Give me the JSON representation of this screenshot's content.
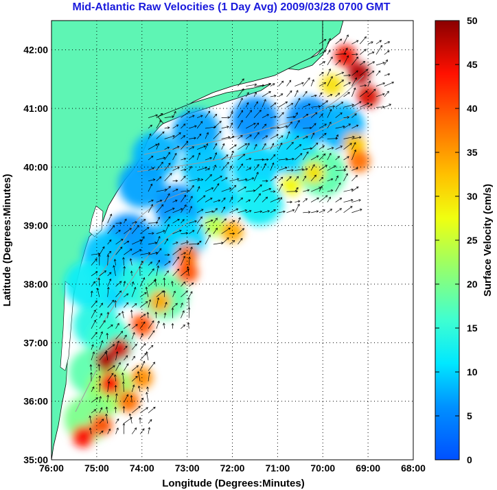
{
  "title": "Mid-Atlantic Raw Velocities (1 Day Avg) 2009/03/28 0700 GMT",
  "x_axis": {
    "label": "Longitude (Degrees:Minutes)",
    "ticks": [
      "76:00",
      "75:00",
      "74:00",
      "73:00",
      "72:00",
      "71:00",
      "70:00",
      "69:00",
      "68:00"
    ],
    "range_deg_west": [
      76,
      68
    ]
  },
  "y_axis": {
    "label": "Latitude (Degrees:Minutes)",
    "ticks": [
      "42:00",
      "41:00",
      "40:00",
      "39:00",
      "38:00",
      "37:00",
      "36:00",
      "35:00"
    ],
    "range_deg_north": [
      35,
      42.5
    ]
  },
  "colorbar": {
    "label": "Surface Velocity (cm/s)",
    "ticks": [
      "50",
      "45",
      "40",
      "35",
      "30",
      "25",
      "20",
      "15",
      "10",
      "5",
      "0"
    ],
    "range": [
      0,
      50
    ],
    "colormap": "jet"
  },
  "colors": {
    "title": "#1a1adc",
    "land": "#5ef5b4",
    "ocean": "#ffffff",
    "grid": "#000000",
    "bathymetry": "#9a9a9a"
  },
  "grid": "dotted"
}
